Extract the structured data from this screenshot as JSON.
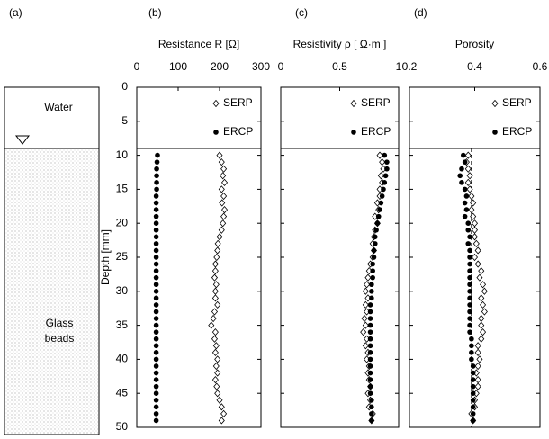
{
  "panel_labels": [
    "(a)",
    "(b)",
    "(c)",
    "(d)"
  ],
  "schematic": {
    "water": "Water",
    "beads": [
      "Glass",
      "beads"
    ]
  },
  "water_depth": 9,
  "chart_data": [
    {
      "type": "scatter",
      "xlabel": "Resistance R [Ω]",
      "ylabel": "Depth [mm]",
      "xlim": [
        0,
        300
      ],
      "xticks": [
        0,
        100,
        200,
        300
      ],
      "ylim": [
        0,
        50
      ],
      "yticks": [
        0,
        5,
        10,
        15,
        20,
        25,
        30,
        35,
        40,
        45,
        50
      ],
      "y": [
        10,
        11,
        12,
        13,
        14,
        15,
        16,
        17,
        18,
        19,
        20,
        21,
        22,
        23,
        24,
        25,
        26,
        27,
        28,
        29,
        30,
        31,
        32,
        33,
        34,
        35,
        36,
        37,
        38,
        39,
        40,
        41,
        42,
        43,
        44,
        45,
        46,
        47,
        48,
        49
      ],
      "series": [
        {
          "name": "SERP",
          "color": "#000000",
          "marker": "diamond",
          "values": [
            200,
            205,
            210,
            208,
            212,
            205,
            210,
            206,
            212,
            210,
            208,
            205,
            200,
            196,
            195,
            193,
            190,
            190,
            188,
            192,
            190,
            190,
            195,
            188,
            185,
            180,
            190,
            188,
            192,
            190,
            195,
            192,
            195,
            190,
            193,
            195,
            200,
            205,
            210,
            205
          ]
        },
        {
          "name": "ERCP",
          "color": "#000000",
          "marker": "circle",
          "values": [
            50,
            49,
            48,
            48,
            48,
            48,
            47,
            47,
            47,
            47,
            47,
            47,
            47,
            47,
            47,
            47,
            47,
            47,
            47,
            47,
            47,
            47,
            47,
            47,
            47,
            47,
            47,
            47,
            47,
            47,
            47,
            47,
            47,
            47,
            47,
            47,
            47,
            47,
            47,
            47
          ]
        }
      ]
    },
    {
      "type": "scatter",
      "xlabel": "Resistivity ρ [ Ω·m ]",
      "xlim": [
        0,
        1
      ],
      "xticks": [
        0,
        0.5,
        1
      ],
      "ylim": [
        0,
        50
      ],
      "y": [
        10,
        11,
        12,
        13,
        14,
        15,
        16,
        17,
        18,
        19,
        20,
        21,
        22,
        23,
        24,
        25,
        26,
        27,
        28,
        29,
        30,
        31,
        32,
        33,
        34,
        35,
        36,
        37,
        38,
        39,
        40,
        41,
        42,
        43,
        44,
        45,
        46,
        47,
        48,
        49
      ],
      "series": [
        {
          "name": "SERP",
          "color": "#000000",
          "marker": "diamond",
          "values": [
            0.84,
            0.86,
            0.87,
            0.85,
            0.86,
            0.84,
            0.84,
            0.82,
            0.83,
            0.8,
            0.82,
            0.8,
            0.79,
            0.78,
            0.79,
            0.78,
            0.76,
            0.75,
            0.74,
            0.73,
            0.72,
            0.74,
            0.72,
            0.73,
            0.71,
            0.72,
            0.7,
            0.73,
            0.72,
            0.74,
            0.73,
            0.75,
            0.74,
            0.75,
            0.76,
            0.74,
            0.76,
            0.75,
            0.78,
            0.77
          ]
        },
        {
          "name": "ERCP",
          "color": "#000000",
          "marker": "circle",
          "values": [
            0.88,
            0.9,
            0.9,
            0.89,
            0.88,
            0.87,
            0.86,
            0.85,
            0.84,
            0.83,
            0.82,
            0.81,
            0.8,
            0.8,
            0.79,
            0.79,
            0.78,
            0.78,
            0.78,
            0.77,
            0.77,
            0.77,
            0.76,
            0.76,
            0.76,
            0.76,
            0.76,
            0.76,
            0.76,
            0.76,
            0.76,
            0.76,
            0.76,
            0.76,
            0.76,
            0.76,
            0.77,
            0.77,
            0.77,
            0.77
          ]
        }
      ]
    },
    {
      "type": "scatter",
      "xlabel": "Porosity",
      "xlim": [
        0.2,
        0.6
      ],
      "xticks": [
        0.2,
        0.4,
        0.6
      ],
      "ylim": [
        0,
        50
      ],
      "reference_line": 0.39,
      "y": [
        10,
        11,
        12,
        13,
        14,
        15,
        16,
        17,
        18,
        19,
        20,
        21,
        22,
        23,
        24,
        25,
        26,
        27,
        28,
        29,
        30,
        31,
        32,
        33,
        34,
        35,
        36,
        37,
        38,
        39,
        40,
        41,
        42,
        43,
        44,
        45,
        46,
        47,
        48,
        49
      ],
      "series": [
        {
          "name": "SERP",
          "color": "#000000",
          "marker": "diamond",
          "values": [
            0.38,
            0.375,
            0.38,
            0.385,
            0.38,
            0.385,
            0.39,
            0.395,
            0.39,
            0.395,
            0.4,
            0.4,
            0.4,
            0.405,
            0.41,
            0.4,
            0.41,
            0.42,
            0.415,
            0.425,
            0.43,
            0.42,
            0.425,
            0.43,
            0.42,
            0.42,
            0.425,
            0.42,
            0.41,
            0.41,
            0.415,
            0.41,
            0.405,
            0.41,
            0.41,
            0.405,
            0.4,
            0.4,
            0.39,
            0.395
          ]
        },
        {
          "name": "ERCP",
          "color": "#000000",
          "marker": "circle",
          "values": [
            0.365,
            0.37,
            0.36,
            0.355,
            0.36,
            0.37,
            0.375,
            0.37,
            0.375,
            0.37,
            0.38,
            0.38,
            0.385,
            0.38,
            0.385,
            0.385,
            0.385,
            0.385,
            0.385,
            0.385,
            0.385,
            0.385,
            0.385,
            0.385,
            0.385,
            0.385,
            0.385,
            0.39,
            0.39,
            0.39,
            0.39,
            0.395,
            0.395,
            0.395,
            0.395,
            0.395,
            0.395,
            0.395,
            0.395,
            0.395
          ]
        }
      ]
    }
  ]
}
